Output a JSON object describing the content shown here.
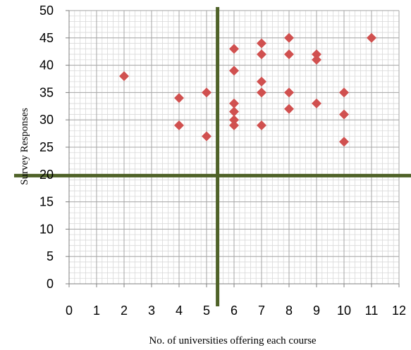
{
  "chart_data": {
    "type": "scatter",
    "title": "",
    "xlabel": "No. of universities offering each course",
    "ylabel": "Survey Responses",
    "xlim": [
      0,
      12
    ],
    "ylim": [
      0,
      50
    ],
    "x_ticks": [
      0,
      1,
      2,
      3,
      4,
      5,
      6,
      7,
      8,
      9,
      10,
      11,
      12
    ],
    "y_ticks": [
      0,
      5,
      10,
      15,
      20,
      25,
      30,
      35,
      40,
      45,
      50
    ],
    "grid": "major and minor",
    "legend": "none",
    "colors": {
      "marker": "#d0504f",
      "quadrant_lines": "#4f6228",
      "grid_major": "#a6a6a6",
      "grid_minor": "#d9d9d9"
    },
    "quadrant_lines": {
      "x": 5.4,
      "y": 19.8
    },
    "points": [
      {
        "x": 2,
        "y": 38
      },
      {
        "x": 4,
        "y": 34
      },
      {
        "x": 4,
        "y": 29
      },
      {
        "x": 5,
        "y": 35
      },
      {
        "x": 5,
        "y": 27
      },
      {
        "x": 6,
        "y": 43
      },
      {
        "x": 6,
        "y": 39
      },
      {
        "x": 6,
        "y": 33
      },
      {
        "x": 6,
        "y": 31.5
      },
      {
        "x": 6,
        "y": 30
      },
      {
        "x": 6,
        "y": 29
      },
      {
        "x": 7,
        "y": 44
      },
      {
        "x": 7,
        "y": 42
      },
      {
        "x": 7,
        "y": 37
      },
      {
        "x": 7,
        "y": 35
      },
      {
        "x": 7,
        "y": 29
      },
      {
        "x": 8,
        "y": 45
      },
      {
        "x": 8,
        "y": 42
      },
      {
        "x": 8,
        "y": 35
      },
      {
        "x": 8,
        "y": 32
      },
      {
        "x": 9,
        "y": 42
      },
      {
        "x": 9,
        "y": 41
      },
      {
        "x": 9,
        "y": 33
      },
      {
        "x": 10,
        "y": 35
      },
      {
        "x": 10,
        "y": 31
      },
      {
        "x": 10,
        "y": 26
      },
      {
        "x": 11,
        "y": 45
      }
    ]
  }
}
